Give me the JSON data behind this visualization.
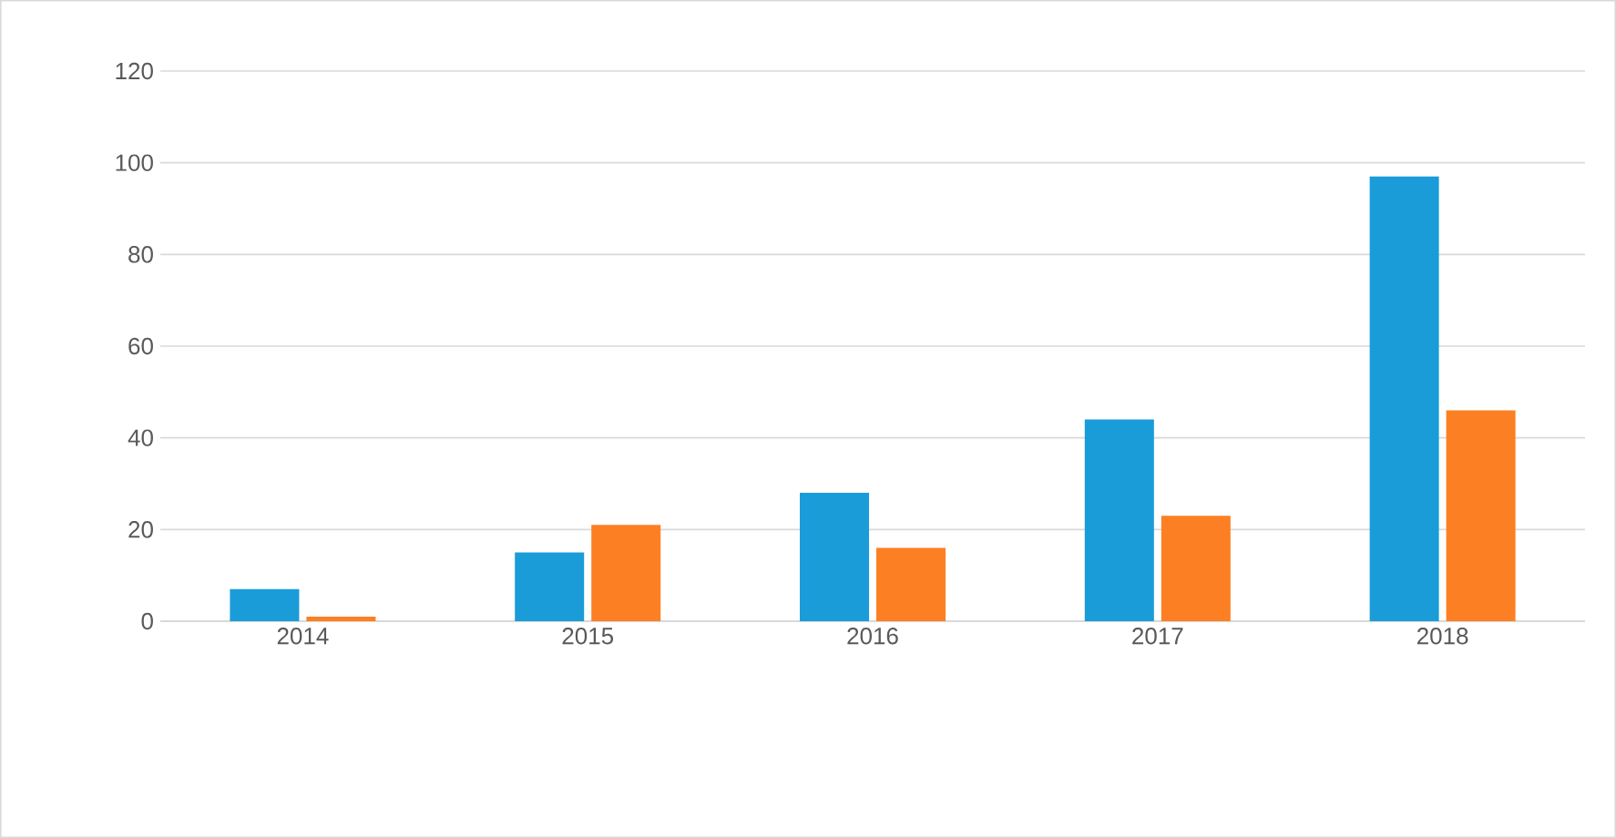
{
  "chart_data": {
    "type": "bar",
    "categories": [
      "2014",
      "2015",
      "2016",
      "2017",
      "2018"
    ],
    "series": [
      {
        "color": "#1a9cd8",
        "values": [
          7,
          15,
          28,
          44,
          97
        ]
      },
      {
        "color": "#fd7f23",
        "values": [
          1,
          21,
          16,
          23,
          46
        ]
      }
    ],
    "ylim": [
      0,
      120
    ],
    "yticks": [
      0,
      20,
      40,
      60,
      80,
      100,
      120
    ],
    "grid": "y"
  }
}
